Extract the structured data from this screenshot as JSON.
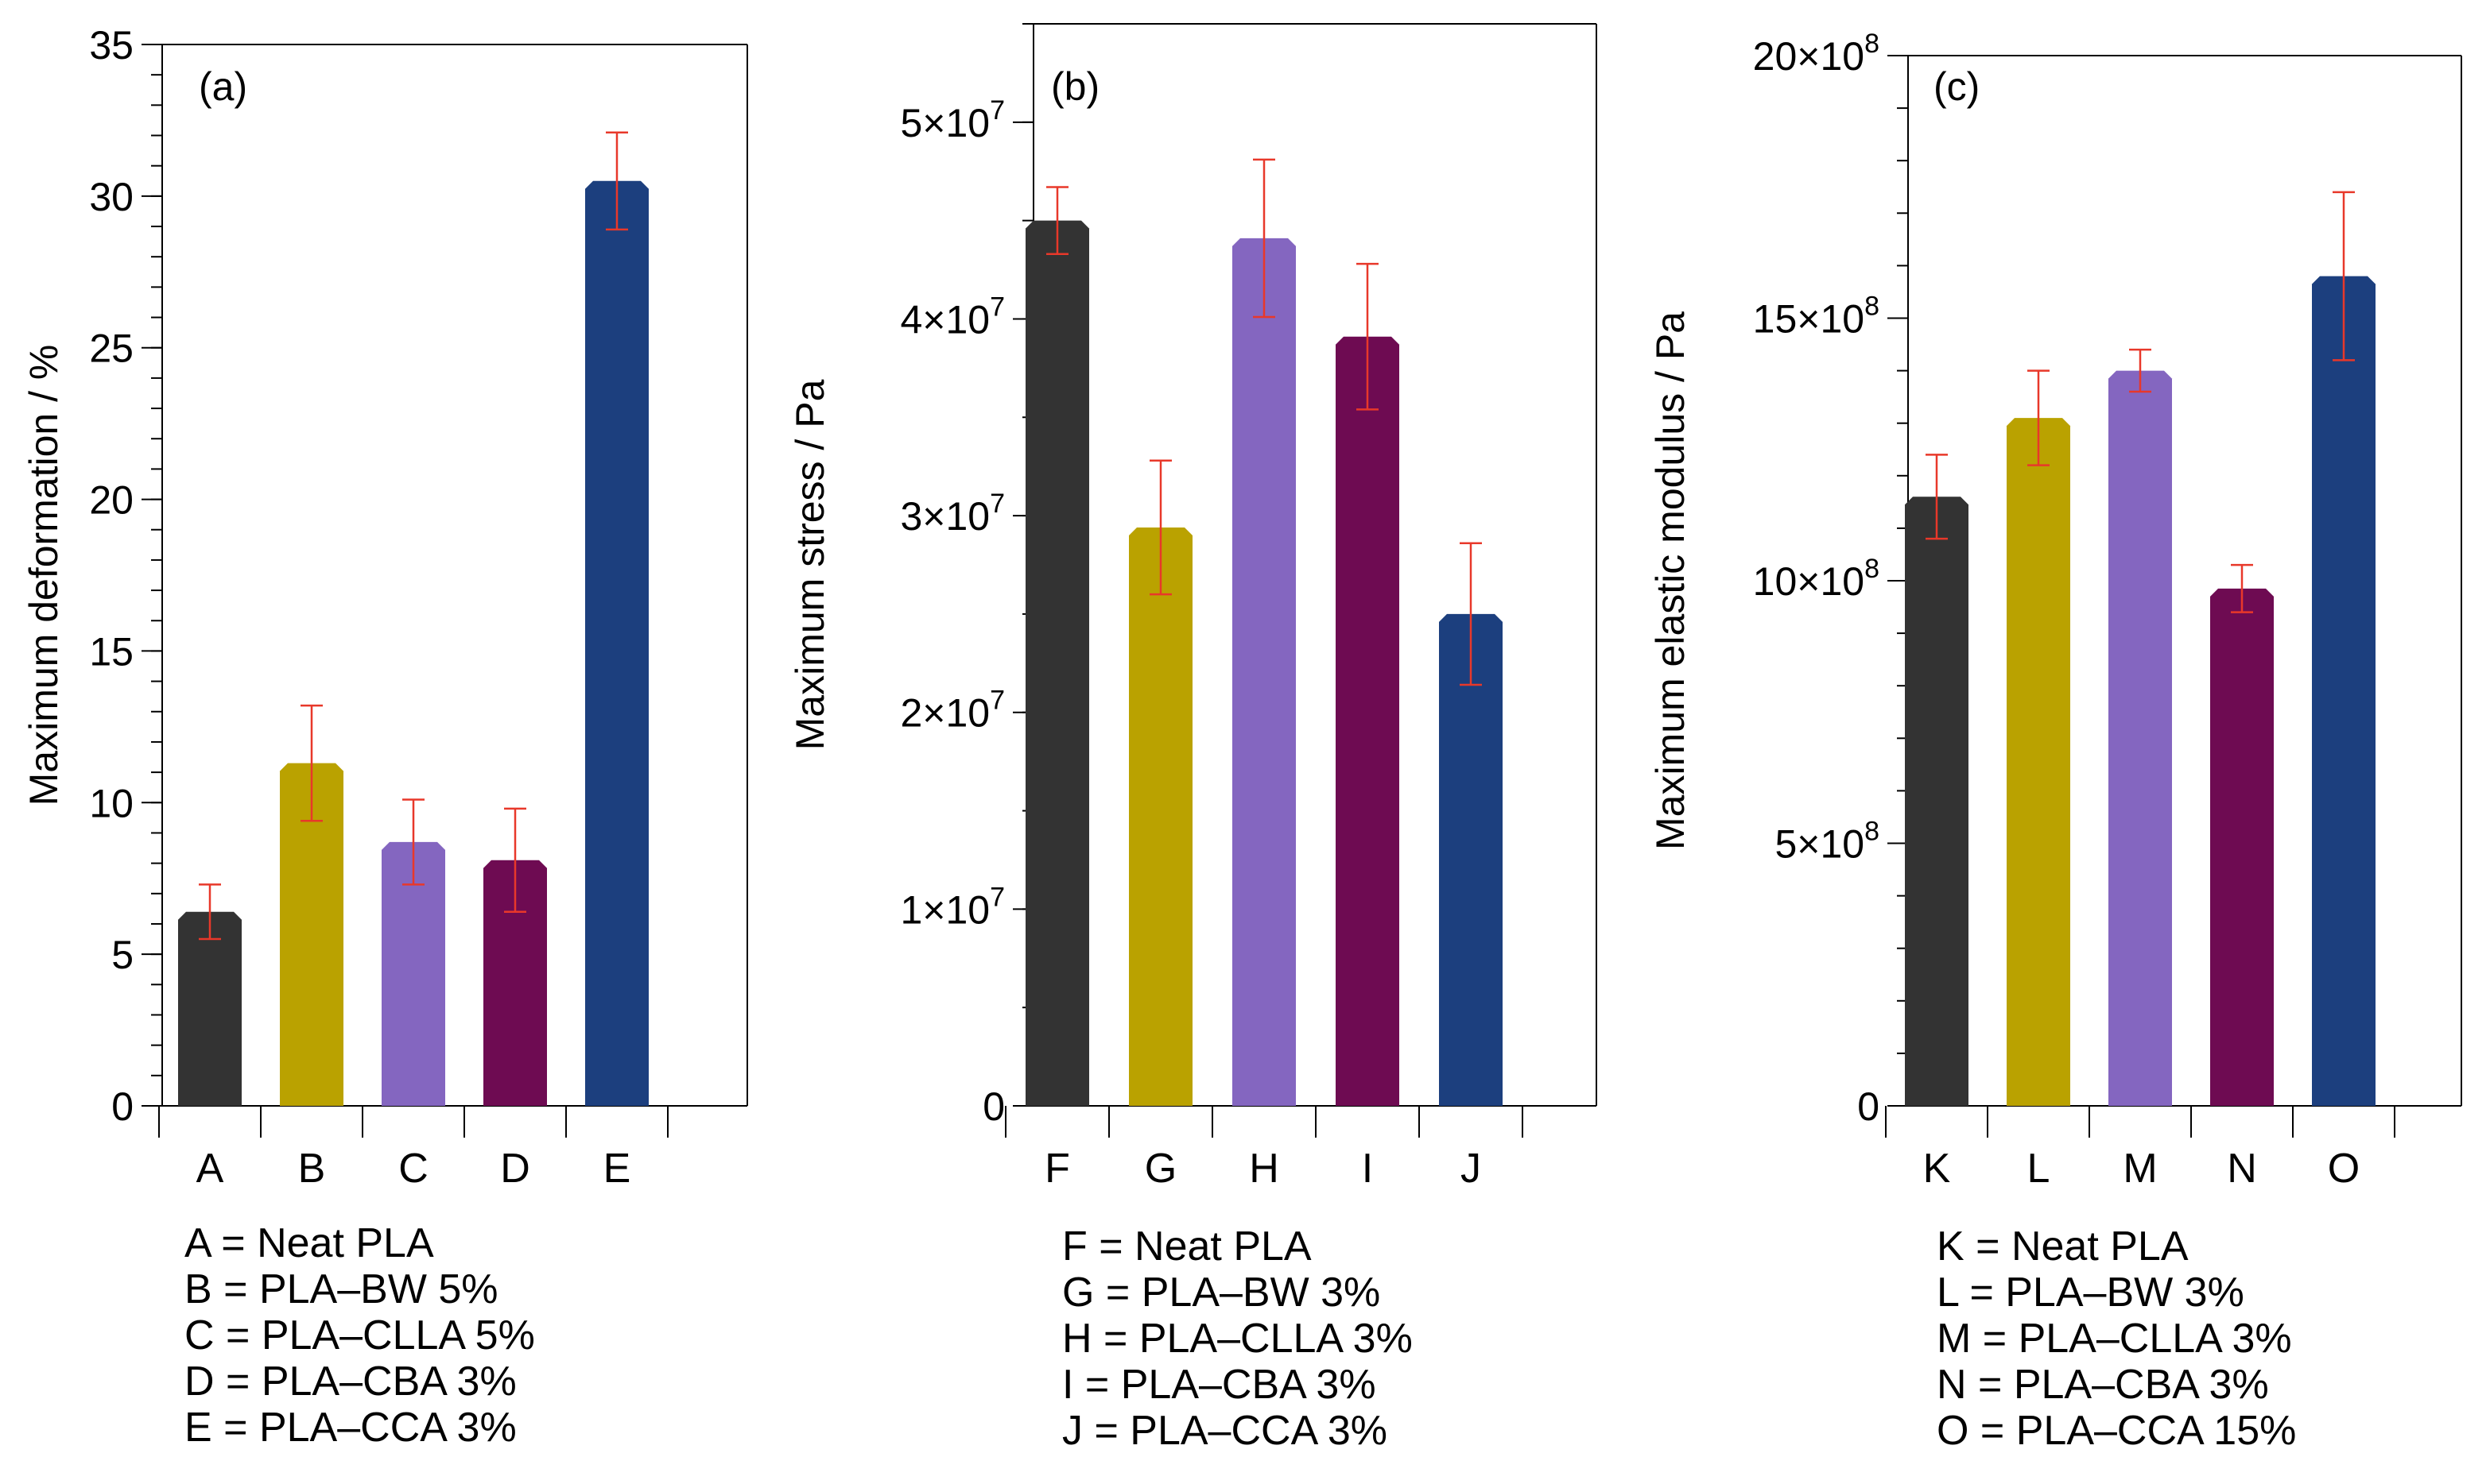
{
  "chart_data": [
    {
      "type": "bar",
      "panel_label": "(a)",
      "ylabel": "Maximum deformation / %",
      "categories": [
        "A",
        "B",
        "C",
        "D",
        "E"
      ],
      "values": [
        6.4,
        11.3,
        8.7,
        8.1,
        30.5
      ],
      "errors": [
        0.9,
        1.9,
        1.4,
        1.7,
        1.6
      ],
      "ylim": [
        0,
        35
      ],
      "yticks": [
        0,
        5,
        10,
        15,
        20,
        25,
        30,
        35
      ],
      "ytick_labels": [
        "0",
        "5",
        "10",
        "15",
        "20",
        "25",
        "30",
        "35"
      ],
      "minor_tick_step": 1,
      "grid": false,
      "legend": [
        "A = Neat PLA",
        "B = PLA–BW 5%",
        "C = PLA–CLLA 5%",
        "D = PLA–CBA 3%",
        "E = PLA–CCA 3%"
      ]
    },
    {
      "type": "bar",
      "panel_label": "(b)",
      "ylabel": "Maximum stress / Pa",
      "categories": [
        "F",
        "G",
        "H",
        "I",
        "J"
      ],
      "values": [
        45000000,
        29400000,
        44100000,
        39100000,
        25000000
      ],
      "errors": [
        1700000,
        3400000,
        4000000,
        3700000,
        3600000
      ],
      "ylim": [
        0,
        55000000
      ],
      "yticks": [
        0,
        10000000,
        20000000,
        30000000,
        40000000,
        50000000
      ],
      "ytick_labels": [
        {
          "mantissa": "0",
          "exponent": ""
        },
        {
          "mantissa": "1×10",
          "exponent": "7"
        },
        {
          "mantissa": "2×10",
          "exponent": "7"
        },
        {
          "mantissa": "3×10",
          "exponent": "7"
        },
        {
          "mantissa": "4×10",
          "exponent": "7"
        },
        {
          "mantissa": "5×10",
          "exponent": "7"
        }
      ],
      "minor_tick_step": 5000000,
      "grid": false,
      "legend": [
        "F = Neat PLA",
        "G = PLA–BW 3%",
        "H = PLA–CLLA 3%",
        "I = PLA–CBA 3%",
        "J = PLA–CCA 3%"
      ]
    },
    {
      "type": "bar",
      "panel_label": "(c)",
      "ylabel": "Maximum elastic modulus / Pa",
      "categories": [
        "K",
        "L",
        "M",
        "N",
        "O"
      ],
      "values": [
        1160000000,
        1310000000,
        1400000000,
        985000000,
        1580000000
      ],
      "errors": [
        80000000,
        90000000,
        40000000,
        45000000,
        160000000
      ],
      "ylim": [
        0,
        2000000000
      ],
      "yticks": [
        0,
        500000000,
        1000000000,
        1500000000,
        2000000000
      ],
      "ytick_labels": [
        {
          "mantissa": "0",
          "exponent": ""
        },
        {
          "mantissa": "5×10",
          "exponent": "8"
        },
        {
          "mantissa": "10×10",
          "exponent": "8"
        },
        {
          "mantissa": "15×10",
          "exponent": "8"
        },
        {
          "mantissa": "20×10",
          "exponent": "8"
        }
      ],
      "minor_tick_step": 100000000,
      "grid": false,
      "legend": [
        "K = Neat PLA",
        "L = PLA–BW 3%",
        "M = PLA–CLLA 3%",
        "N = PLA–CBA 3%",
        "O = PLA–CCA 15%"
      ]
    }
  ],
  "colors": {
    "bars": [
      "#333333",
      "#baa200",
      "#8466c0",
      "#6e0b52",
      "#1c3f7e"
    ],
    "error_bar": "#e8382a",
    "axis": "#000000"
  }
}
